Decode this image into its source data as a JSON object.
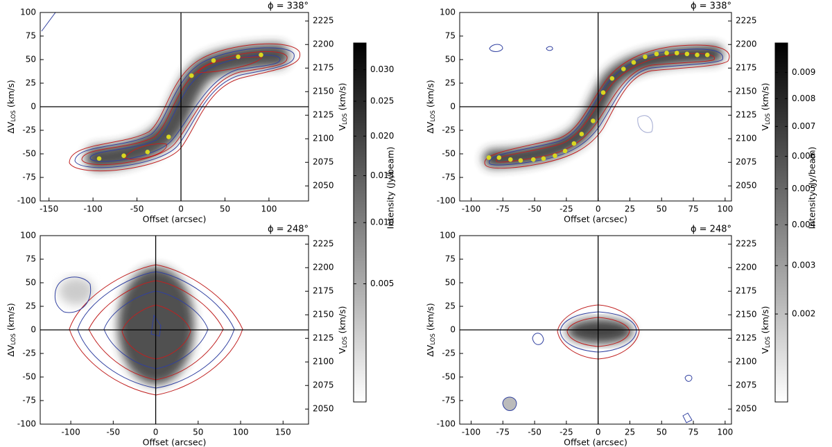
{
  "chart_data": [
    {
      "type": "scatter",
      "title": "ϕ = 338°",
      "xlabel": "Offset (arcsec)",
      "ylabel": {
        "text": "ΔV",
        "sub": "LOS",
        "unit": "(km/s)"
      },
      "y2label": {
        "text": "V",
        "sub": "LOS",
        "unit": "(km/s)"
      },
      "xlim": [
        -160,
        145
      ],
      "xticks": [
        -150,
        -100,
        -50,
        0,
        50,
        100
      ],
      "ylim": [
        -100,
        100
      ],
      "yticks": [
        -100,
        -75,
        -50,
        -25,
        0,
        25,
        50,
        75,
        100
      ],
      "y2lim": [
        2034,
        2234
      ],
      "y2ticks": [
        2050,
        2075,
        2100,
        2125,
        2150,
        2175,
        2200,
        2225
      ],
      "x": [
        -93,
        -65,
        -38,
        -14,
        12,
        37,
        65,
        91
      ],
      "y": [
        -55,
        -52,
        -48,
        -32,
        33,
        49,
        53,
        55
      ],
      "color": "#d8d820",
      "colorbar": {
        "label": "Intensity (Jy/beam)",
        "scale": "sqrt",
        "clim": [
          0.0002,
          0.0346
        ],
        "ticks": [
          0.005,
          {
            "value": 0.01,
            "label": "0.010"
          },
          0.015,
          {
            "value": 0.02,
            "label": "0.020"
          },
          0.025,
          {
            "value": 0.03,
            "label": "0.030"
          }
        ]
      }
    },
    {
      "type": "scatter",
      "title": "ϕ = 338°",
      "xlabel": "Offset (arcsec)",
      "ylabel": {
        "text": "ΔV",
        "sub": "LOS",
        "unit": "(km/s)"
      },
      "y2label": {
        "text": "V",
        "sub": "LOS",
        "unit": "(km/s)"
      },
      "xlim": [
        -109,
        105
      ],
      "xticks": [
        -100,
        -75,
        -50,
        -25,
        0,
        25,
        50,
        75,
        100
      ],
      "ylim": [
        -100,
        100
      ],
      "yticks": [
        -100,
        -75,
        -50,
        -25,
        0,
        25,
        50,
        75,
        100
      ],
      "y2lim": [
        2034,
        2234
      ],
      "y2ticks": [
        2050,
        2075,
        2100,
        2125,
        2150,
        2175,
        2200,
        2225
      ],
      "x": [
        -86,
        -78,
        -69,
        -61,
        -51,
        -43,
        -34,
        -26,
        -19,
        -13,
        -4,
        4,
        11,
        20,
        28,
        37,
        46,
        54,
        62,
        70,
        78,
        86
      ],
      "y": [
        -54,
        -54,
        -56,
        -57,
        -56,
        -55,
        -52,
        -47,
        -39,
        -29,
        -15,
        15,
        30,
        40,
        47,
        53,
        56,
        57,
        57,
        56,
        55,
        55
      ],
      "color": "#d8d820",
      "colorbar": {
        "label": "Intensity (Jy/beam)",
        "scale": "sqrt",
        "clim": [
          0.0007,
          0.0102
        ],
        "ticks": [
          0.002,
          0.003,
          0.004,
          0.005,
          0.006,
          0.007,
          0.008,
          0.009
        ]
      }
    },
    {
      "type": "scatter",
      "title": "ϕ = 248°",
      "xlabel": "Offset (arcsec)",
      "ylabel": {
        "text": "ΔV",
        "sub": "LOS",
        "unit": "(km/s)"
      },
      "y2label": {
        "text": "V",
        "sub": "LOS",
        "unit": "(km/s)"
      },
      "xlim": [
        -136,
        180
      ],
      "xticks": [
        -100,
        -50,
        0,
        50,
        100,
        150
      ],
      "ylim": [
        -100,
        100
      ],
      "yticks": [
        -100,
        -75,
        -50,
        -25,
        0,
        25,
        50,
        75,
        100
      ],
      "y2lim": [
        2034,
        2234
      ],
      "y2ticks": [
        2050,
        2075,
        2100,
        2125,
        2150,
        2175,
        2200,
        2225
      ]
    },
    {
      "type": "scatter",
      "title": "ϕ = 248°",
      "xlabel": "Offset (arcsec)",
      "ylabel": {
        "text": "ΔV",
        "sub": "LOS",
        "unit": "(km/s)"
      },
      "y2label": {
        "text": "V",
        "sub": "LOS",
        "unit": "(km/s)"
      },
      "xlim": [
        -109,
        105
      ],
      "xticks": [
        -100,
        -75,
        -50,
        -25,
        0,
        25,
        50,
        75,
        100
      ],
      "ylim": [
        -100,
        100
      ],
      "yticks": [
        -100,
        -75,
        -50,
        -25,
        0,
        25,
        50,
        75,
        100
      ],
      "y2lim": [
        2034,
        2234
      ],
      "y2ticks": [
        2050,
        2075,
        2100,
        2125,
        2150,
        2175,
        2200,
        2225
      ]
    }
  ]
}
